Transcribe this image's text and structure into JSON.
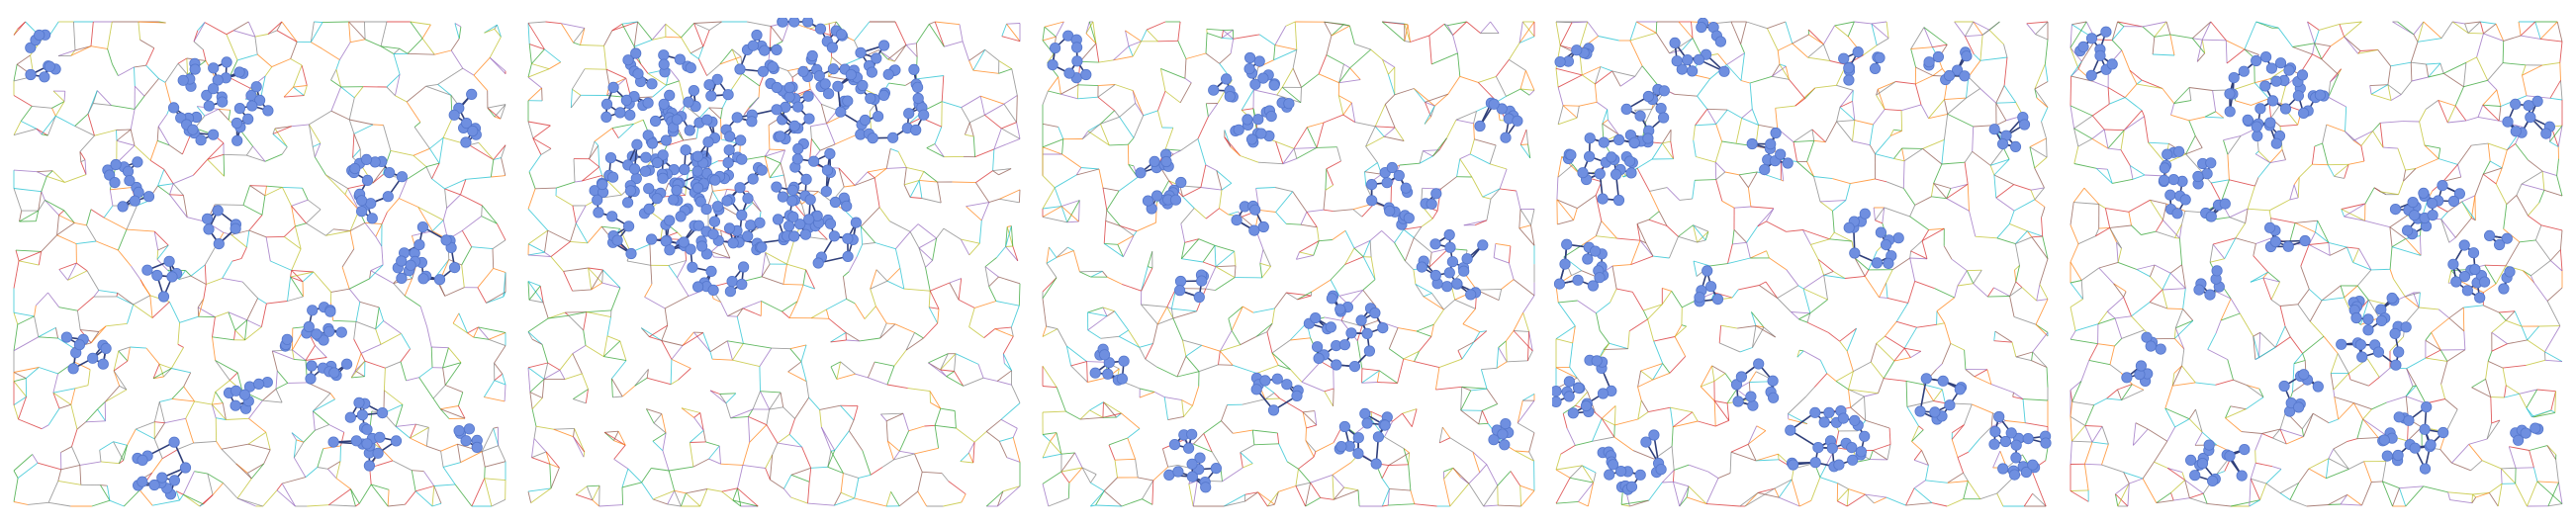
{
  "figure": {
    "panel_count": 5,
    "background": "#ffffff",
    "node_color": "#6f8fe0",
    "node_stroke": "#5577cc",
    "edge_palette": [
      "#8c564b",
      "#d62728",
      "#9467bd",
      "#bcbd22",
      "#17becf",
      "#2ca02c",
      "#ff7f0e",
      "#7f7f7f"
    ],
    "panels": [
      {
        "id": 1,
        "clusters": [
          [
            0.06,
            0.07,
            0.05
          ],
          [
            0.42,
            0.16,
            0.1
          ],
          [
            0.93,
            0.2,
            0.05
          ],
          [
            0.23,
            0.33,
            0.06
          ],
          [
            0.73,
            0.35,
            0.07
          ],
          [
            0.42,
            0.42,
            0.04
          ],
          [
            0.84,
            0.48,
            0.07
          ],
          [
            0.3,
            0.53,
            0.04
          ],
          [
            0.62,
            0.66,
            0.08
          ],
          [
            0.14,
            0.69,
            0.05
          ],
          [
            0.47,
            0.76,
            0.05
          ],
          [
            0.71,
            0.85,
            0.07
          ],
          [
            0.3,
            0.92,
            0.06
          ],
          [
            0.93,
            0.85,
            0.03
          ]
        ]
      },
      {
        "id": 2,
        "clusters": [
          [
            0.28,
            0.18,
            0.13
          ],
          [
            0.55,
            0.1,
            0.12
          ],
          [
            0.72,
            0.15,
            0.1
          ],
          [
            0.24,
            0.37,
            0.12
          ],
          [
            0.48,
            0.32,
            0.14
          ],
          [
            0.38,
            0.46,
            0.1
          ],
          [
            0.6,
            0.42,
            0.08
          ]
        ]
      },
      {
        "id": 3,
        "clusters": [
          [
            0.06,
            0.07,
            0.05
          ],
          [
            0.42,
            0.16,
            0.09
          ],
          [
            0.93,
            0.2,
            0.05
          ],
          [
            0.22,
            0.33,
            0.07
          ],
          [
            0.73,
            0.35,
            0.07
          ],
          [
            0.42,
            0.42,
            0.04
          ],
          [
            0.84,
            0.5,
            0.07
          ],
          [
            0.3,
            0.55,
            0.04
          ],
          [
            0.62,
            0.64,
            0.08
          ],
          [
            0.14,
            0.7,
            0.05
          ],
          [
            0.47,
            0.77,
            0.05
          ],
          [
            0.66,
            0.86,
            0.06
          ],
          [
            0.3,
            0.91,
            0.06
          ],
          [
            0.93,
            0.85,
            0.03
          ]
        ]
      },
      {
        "id": 4,
        "clusters": [
          [
            0.04,
            0.08,
            0.04
          ],
          [
            0.3,
            0.06,
            0.06
          ],
          [
            0.62,
            0.08,
            0.05
          ],
          [
            0.8,
            0.08,
            0.05
          ],
          [
            0.2,
            0.2,
            0.06
          ],
          [
            0.1,
            0.3,
            0.08
          ],
          [
            0.44,
            0.28,
            0.05
          ],
          [
            0.93,
            0.22,
            0.04
          ],
          [
            0.04,
            0.5,
            0.06
          ],
          [
            0.3,
            0.55,
            0.04
          ],
          [
            0.65,
            0.45,
            0.06
          ],
          [
            0.05,
            0.75,
            0.07
          ],
          [
            0.15,
            0.9,
            0.07
          ],
          [
            0.4,
            0.75,
            0.05
          ],
          [
            0.55,
            0.87,
            0.08
          ],
          [
            0.93,
            0.88,
            0.07
          ],
          [
            0.78,
            0.78,
            0.05
          ]
        ]
      },
      {
        "id": 5,
        "clusters": [
          [
            0.06,
            0.07,
            0.05
          ],
          [
            0.42,
            0.16,
            0.1
          ],
          [
            0.93,
            0.2,
            0.05
          ],
          [
            0.25,
            0.33,
            0.08
          ],
          [
            0.73,
            0.38,
            0.07
          ],
          [
            0.44,
            0.44,
            0.04
          ],
          [
            0.84,
            0.5,
            0.07
          ],
          [
            0.3,
            0.55,
            0.04
          ],
          [
            0.62,
            0.64,
            0.08
          ],
          [
            0.14,
            0.7,
            0.05
          ],
          [
            0.47,
            0.76,
            0.05
          ],
          [
            0.7,
            0.86,
            0.07
          ],
          [
            0.3,
            0.91,
            0.06
          ],
          [
            0.93,
            0.85,
            0.03
          ]
        ]
      }
    ]
  }
}
